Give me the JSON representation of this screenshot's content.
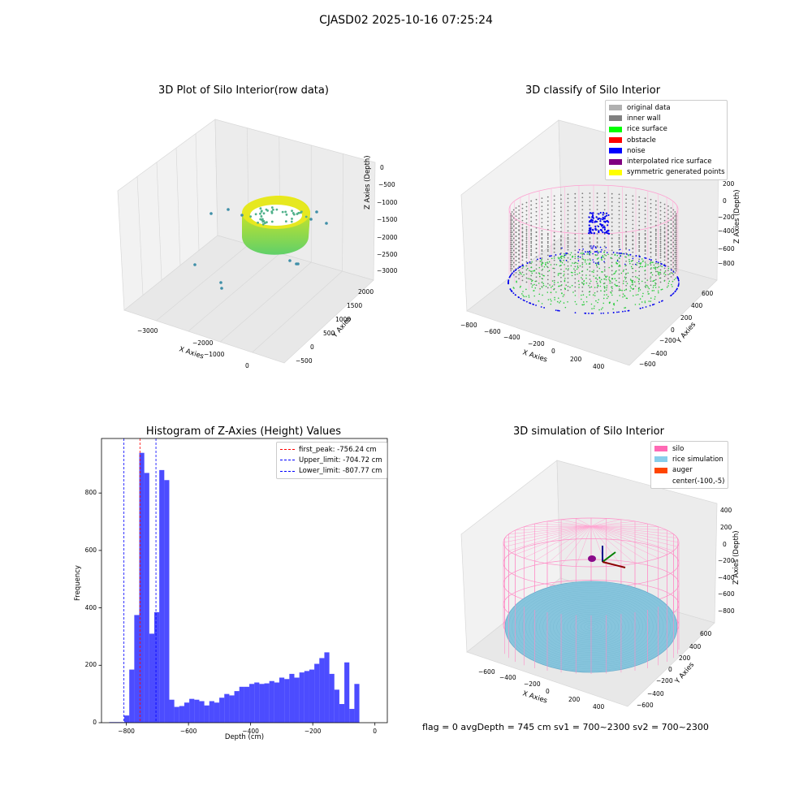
{
  "page": {
    "suptitle": "CJASD02 2025-10-16 07:25:24",
    "footer": "flag = 0     avgDepth = 745 cm  sv1 = 700~2300  sv2 = 700~2300"
  },
  "panels": {
    "raw": {
      "title": "3D Plot of Silo Interior(row data)",
      "xlabel": "X Axies",
      "ylabel": "Y Axies",
      "zlabel": "Z Axies (Depth)",
      "xticks": [
        "−3000",
        "−2000",
        "−1000",
        "0"
      ],
      "yticks": [
        "−500",
        "0",
        "500",
        "1000",
        "1500",
        "2000"
      ],
      "zticks": [
        "0",
        "−500",
        "−1000",
        "−1500",
        "−2000",
        "−2500",
        "−3000"
      ]
    },
    "classify": {
      "title": "3D classify of Silo Interior",
      "xlabel": "X Axies",
      "ylabel": "Y Axies",
      "zlabel": "Z Axies (Depth)",
      "xticks": [
        "−800",
        "−600",
        "−400",
        "−200",
        "0",
        "200",
        "400"
      ],
      "yticks": [
        "−600",
        "−400",
        "−200",
        "0",
        "200",
        "400",
        "600"
      ],
      "zticks": [
        "200",
        "0",
        "−200",
        "−400",
        "−600",
        "−800"
      ],
      "legend": [
        {
          "label": "original data",
          "color": "#b0b0b0"
        },
        {
          "label": "inner wall",
          "color": "#808080"
        },
        {
          "label": "rice surface",
          "color": "#00ff00"
        },
        {
          "label": "obstacle",
          "color": "#ff0000"
        },
        {
          "label": "noise",
          "color": "#0000ff"
        },
        {
          "label": "interpolated rice surface",
          "color": "#800080"
        },
        {
          "label": "symmetric generated points",
          "color": "#ffff00"
        }
      ]
    },
    "simulation": {
      "title": "3D simulation of Silo Interior",
      "xlabel": "X Axies",
      "ylabel": "Y Axies",
      "zlabel": "Z Axies (Depth)",
      "xticks": [
        "−600",
        "−400",
        "−200",
        "0",
        "200",
        "400"
      ],
      "yticks": [
        "−600",
        "−400",
        "−200",
        "0",
        "200",
        "400",
        "600"
      ],
      "zticks": [
        "400",
        "200",
        "0",
        "−200",
        "−400",
        "−600",
        "−800"
      ],
      "legend": [
        {
          "label": "silo",
          "color": "#ff69b4"
        },
        {
          "label": "rice simulation",
          "color": "#87ceeb"
        },
        {
          "label": "auger",
          "color": "#ff4500"
        },
        {
          "label": "center(-100,-5)",
          "color": "#ffffff"
        }
      ]
    }
  },
  "chart_data": {
    "type": "bar",
    "title": "Histogram of Z-Axies (Height) Values",
    "xlabel": "Depth (cm)",
    "ylabel": "Frequency",
    "xlim": [
      -880,
      40
    ],
    "ylim": [
      0,
      990
    ],
    "xticks": [
      -800,
      -600,
      -400,
      -200,
      0
    ],
    "xtick_labels": [
      "−800",
      "−600",
      "−400",
      "−200",
      "0"
    ],
    "yticks": [
      0,
      200,
      400,
      600,
      800
    ],
    "bar_color": "#0000ff",
    "bar_alpha": 0.7,
    "bin_start": -855,
    "bin_width": 16.1,
    "values": [
      2,
      2,
      2,
      25,
      185,
      375,
      940,
      870,
      310,
      385,
      880,
      845,
      80,
      55,
      58,
      70,
      83,
      80,
      75,
      60,
      75,
      70,
      87,
      100,
      95,
      110,
      125,
      125,
      135,
      140,
      135,
      137,
      145,
      140,
      157,
      152,
      170,
      157,
      175,
      180,
      185,
      205,
      225,
      245,
      170,
      115,
      65,
      210,
      48,
      135
    ],
    "lines": [
      {
        "label": "first_peak: -756.24 cm",
        "x": -756.24,
        "color": "#ff0000"
      },
      {
        "label": "Upper_limit: -704.72 cm",
        "x": -704.72,
        "color": "#0000ff"
      },
      {
        "label": "Lower_limit: -807.77 cm",
        "x": -807.77,
        "color": "#0000ff"
      }
    ]
  }
}
